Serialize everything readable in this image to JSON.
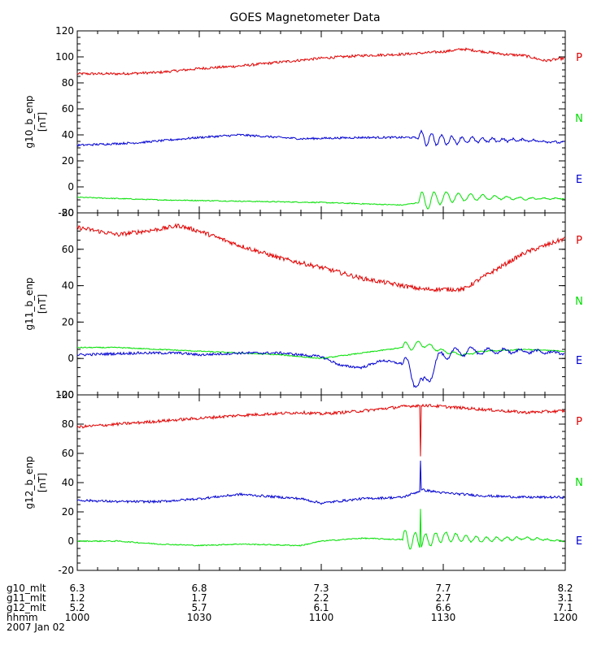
{
  "title": "GOES Magnetometer Data",
  "colors": {
    "P": "#e00000",
    "N": "#00e000",
    "E": "#0000d0",
    "axis": "#000000"
  },
  "chart_data": [
    {
      "type": "line",
      "id": "g10",
      "ylabel": "g10_b_enp",
      "units": "[nT]",
      "ylim": [
        -20,
        120
      ],
      "yticks": [
        -20,
        0,
        20,
        40,
        60,
        80,
        100,
        120
      ],
      "xlim": [
        0,
        120
      ],
      "right_labels": [
        "P",
        "N",
        "E"
      ],
      "series": [
        {
          "name": "P",
          "color_key": "P",
          "noise": 1.0,
          "x": [
            0,
            10,
            20,
            30,
            40,
            50,
            60,
            70,
            80,
            85,
            90,
            95,
            100,
            105,
            110,
            115,
            120
          ],
          "y": [
            87,
            87,
            88,
            91,
            93,
            96,
            99,
            101,
            102,
            103,
            104,
            106,
            104,
            102,
            101,
            97,
            99
          ]
        },
        {
          "name": "N",
          "color_key": "N",
          "noise": 0.4,
          "osc": {
            "start": 84,
            "amp": 8,
            "decay": 0.09,
            "period": 3
          },
          "x": [
            0,
            20,
            40,
            60,
            80,
            84,
            90,
            100,
            110,
            120
          ],
          "y": [
            -8,
            -10,
            -11,
            -12,
            -14,
            -12,
            -8,
            -8,
            -9,
            -9
          ]
        },
        {
          "name": "E",
          "color_key": "E",
          "noise": 0.8,
          "osc": {
            "start": 84,
            "amp": 6,
            "decay": 0.08,
            "period": 2.5
          },
          "x": [
            0,
            15,
            30,
            40,
            55,
            70,
            82,
            90,
            100,
            110,
            120
          ],
          "y": [
            32,
            34,
            38,
            40,
            37,
            38,
            38,
            36,
            36,
            36,
            34
          ]
        }
      ]
    },
    {
      "type": "line",
      "id": "g11",
      "ylabel": "g11_b_enp",
      "units": "[nT]",
      "ylim": [
        -20,
        80
      ],
      "yticks": [
        -20,
        0,
        20,
        40,
        60,
        80
      ],
      "xlim": [
        0,
        120
      ],
      "right_labels": [
        "P",
        "N",
        "E"
      ],
      "series": [
        {
          "name": "P",
          "color_key": "P",
          "noise": 1.2,
          "x": [
            0,
            10,
            20,
            25,
            30,
            40,
            50,
            60,
            70,
            80,
            85,
            90,
            95,
            100,
            110,
            120
          ],
          "y": [
            72,
            68,
            71,
            73,
            70,
            62,
            55,
            50,
            44,
            40,
            38,
            38,
            38,
            45,
            58,
            66
          ]
        },
        {
          "name": "N",
          "color_key": "N",
          "noise": 0.3,
          "osc": {
            "start": 80,
            "amp": 3,
            "decay": 0.12,
            "period": 3
          },
          "x": [
            0,
            10,
            20,
            30,
            40,
            50,
            60,
            70,
            80,
            85,
            90,
            95,
            100,
            110,
            120
          ],
          "y": [
            6,
            6,
            5,
            4,
            3,
            2,
            0,
            3,
            6,
            8,
            4,
            2,
            4,
            5,
            4
          ]
        },
        {
          "name": "E",
          "color_key": "E",
          "noise": 0.7,
          "osc": {
            "start": 80,
            "amp": 6,
            "decay": 0.06,
            "period": 4
          },
          "x": [
            0,
            15,
            25,
            30,
            40,
            50,
            60,
            65,
            70,
            75,
            80,
            82,
            85,
            88,
            90,
            95,
            100,
            110,
            120
          ],
          "y": [
            2,
            3,
            3,
            2,
            3,
            3,
            1,
            -4,
            -5,
            -1,
            -3,
            -8,
            -16,
            -3,
            2,
            4,
            4,
            4,
            3
          ]
        }
      ]
    },
    {
      "type": "line",
      "id": "g12",
      "ylabel": "g12_b_enp",
      "units": "[nT]",
      "ylim": [
        -20,
        100
      ],
      "yticks": [
        -20,
        0,
        20,
        40,
        60,
        80,
        100
      ],
      "xlim": [
        0,
        120
      ],
      "right_labels": [
        "P",
        "N",
        "E"
      ],
      "series": [
        {
          "name": "P",
          "color_key": "P",
          "noise": 1.0,
          "spike": {
            "x": 84.5,
            "to": 58
          },
          "x": [
            0,
            10,
            20,
            30,
            40,
            55,
            60,
            70,
            80,
            85,
            90,
            100,
            110,
            120
          ],
          "y": [
            78,
            80,
            82,
            84,
            86,
            88,
            87,
            89,
            92,
            93,
            92,
            90,
            88,
            89
          ]
        },
        {
          "name": "N",
          "color_key": "N",
          "noise": 0.4,
          "spike": {
            "x": 84.5,
            "to": 22
          },
          "osc": {
            "start": 80,
            "amp": 7,
            "decay": 0.07,
            "period": 2.5
          },
          "x": [
            0,
            10,
            20,
            30,
            40,
            55,
            60,
            70,
            80,
            85,
            90,
            100,
            110,
            120
          ],
          "y": [
            0,
            0,
            -2,
            -3,
            -2,
            -3,
            0,
            2,
            1,
            0,
            3,
            1,
            2,
            0
          ]
        },
        {
          "name": "E",
          "color_key": "E",
          "noise": 0.8,
          "spike": {
            "x": 84.5,
            "to": 55
          },
          "x": [
            0,
            10,
            20,
            30,
            40,
            55,
            60,
            70,
            80,
            85,
            90,
            100,
            110,
            120
          ],
          "y": [
            28,
            27,
            27,
            29,
            32,
            29,
            26,
            29,
            30,
            35,
            33,
            31,
            30,
            30
          ]
        }
      ]
    }
  ],
  "x_axis": {
    "ticks": [
      0,
      30,
      60,
      90,
      120
    ],
    "rows": [
      {
        "label": "g10_mlt",
        "values": [
          "6.3",
          "6.8",
          "7.3",
          "7.7",
          "8.2"
        ]
      },
      {
        "label": "g11_mlt",
        "values": [
          "1.2",
          "1.7",
          "2.2",
          "2.7",
          "3.1"
        ]
      },
      {
        "label": "g12_mlt",
        "values": [
          "5.2",
          "5.7",
          "6.1",
          "6.6",
          "7.1"
        ]
      },
      {
        "label": "hhmm",
        "values": [
          "1000",
          "1030",
          "1100",
          "1130",
          "1200"
        ]
      }
    ],
    "date": "2007 Jan 02"
  }
}
